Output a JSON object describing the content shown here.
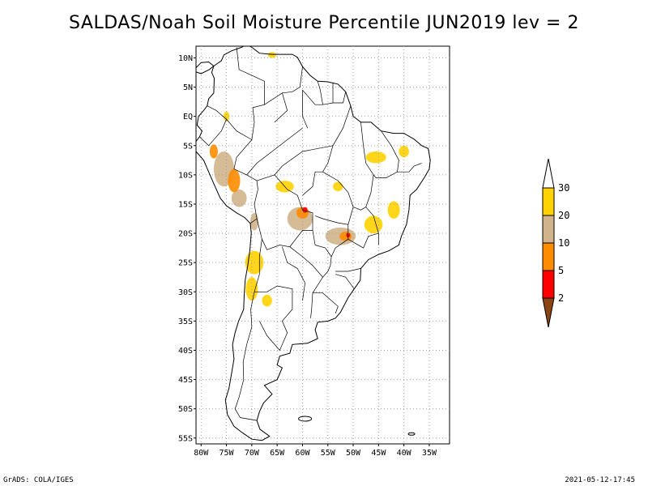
{
  "title": "SALDAS/Noah Soil Moisture Percentile JUN2019 lev = 2",
  "map": {
    "lat_range": [
      -56,
      12
    ],
    "lon_range": [
      -81,
      -31
    ],
    "lat_ticks": [
      {
        "value": 10,
        "label": "10N"
      },
      {
        "value": 5,
        "label": "5N"
      },
      {
        "value": 0,
        "label": "EQ"
      },
      {
        "value": -5,
        "label": "5S"
      },
      {
        "value": -10,
        "label": "10S"
      },
      {
        "value": -15,
        "label": "15S"
      },
      {
        "value": -20,
        "label": "20S"
      },
      {
        "value": -25,
        "label": "25S"
      },
      {
        "value": -30,
        "label": "30S"
      },
      {
        "value": -35,
        "label": "35S"
      },
      {
        "value": -40,
        "label": "40S"
      },
      {
        "value": -45,
        "label": "45S"
      },
      {
        "value": -50,
        "label": "50S"
      },
      {
        "value": -55,
        "label": "55S"
      }
    ],
    "lon_ticks": [
      {
        "value": -80,
        "label": "80W"
      },
      {
        "value": -75,
        "label": "75W"
      },
      {
        "value": -70,
        "label": "70W"
      },
      {
        "value": -65,
        "label": "65W"
      },
      {
        "value": -60,
        "label": "60W"
      },
      {
        "value": -55,
        "label": "55W"
      },
      {
        "value": -50,
        "label": "50W"
      },
      {
        "value": -45,
        "label": "45W"
      },
      {
        "value": -40,
        "label": "40W"
      },
      {
        "value": -35,
        "label": "35W"
      }
    ],
    "grid": true,
    "dry_regions": [
      {
        "lon": -75.5,
        "lat": -9,
        "rlon": 2.0,
        "rlat": 3.0,
        "level": "20"
      },
      {
        "lon": -73.5,
        "lat": -11,
        "rlon": 1.2,
        "rlat": 2.0,
        "level": "10"
      },
      {
        "lon": -77.5,
        "lat": -6,
        "rlon": 0.8,
        "rlat": 1.2,
        "level": "10"
      },
      {
        "lon": -72.5,
        "lat": -14,
        "rlon": 1.5,
        "rlat": 1.5,
        "level": "20"
      },
      {
        "lon": -69.5,
        "lat": -18,
        "rlon": 0.8,
        "rlat": 1.5,
        "level": "20"
      },
      {
        "lon": -69.5,
        "lat": -25,
        "rlon": 1.8,
        "rlat": 2.0,
        "level": "30"
      },
      {
        "lon": -70.0,
        "lat": -29.5,
        "rlon": 1.2,
        "rlat": 2.0,
        "level": "30"
      },
      {
        "lon": -67.0,
        "lat": -31.5,
        "rlon": 1.0,
        "rlat": 1.0,
        "level": "30"
      },
      {
        "lon": -63.5,
        "lat": -12,
        "rlon": 1.8,
        "rlat": 1.0,
        "level": "30"
      },
      {
        "lon": -60.5,
        "lat": -17.5,
        "rlon": 2.5,
        "rlat": 2.0,
        "level": "20"
      },
      {
        "lon": -60.0,
        "lat": -16.5,
        "rlon": 1.2,
        "rlat": 1.0,
        "level": "10"
      },
      {
        "lon": -59.5,
        "lat": -16.0,
        "rlon": 0.5,
        "rlat": 0.5,
        "level": "5"
      },
      {
        "lon": -52.5,
        "lat": -20.5,
        "rlon": 3.0,
        "rlat": 1.5,
        "level": "20"
      },
      {
        "lon": -51.5,
        "lat": -20.5,
        "rlon": 1.2,
        "rlat": 0.8,
        "level": "10"
      },
      {
        "lon": -51.0,
        "lat": -20.3,
        "rlon": 0.4,
        "rlat": 0.4,
        "level": "5"
      },
      {
        "lon": -46.0,
        "lat": -18.5,
        "rlon": 1.8,
        "rlat": 1.5,
        "level": "30"
      },
      {
        "lon": -45.5,
        "lat": -7,
        "rlon": 2.0,
        "rlat": 1.0,
        "level": "30"
      },
      {
        "lon": -40.0,
        "lat": -6,
        "rlon": 1.0,
        "rlat": 1.0,
        "level": "30"
      },
      {
        "lon": -42.0,
        "lat": -16.0,
        "rlon": 1.2,
        "rlat": 1.5,
        "level": "30"
      },
      {
        "lon": -66.0,
        "lat": 10.5,
        "rlon": 0.8,
        "rlat": 0.5,
        "level": "30"
      },
      {
        "lon": -75.0,
        "lat": 0,
        "rlon": 0.6,
        "rlat": 0.8,
        "level": "30"
      },
      {
        "lon": -53.0,
        "lat": -12,
        "rlon": 1.0,
        "rlat": 0.8,
        "level": "30"
      }
    ]
  },
  "legend": {
    "levels": [
      {
        "label": "30",
        "color": "#ffd200"
      },
      {
        "label": "20",
        "color": "#d2b48c"
      },
      {
        "label": "10",
        "color": "#ff8c00"
      },
      {
        "label": "5",
        "color": "#ff0000"
      },
      {
        "label": "2",
        "color": "#8b4513"
      }
    ],
    "top_color": "#ffffff",
    "colors": {
      "30": "#ffd200",
      "20": "#d2b48c",
      "10": "#ff8c00",
      "5": "#ff0000",
      "2": "#8b4513"
    }
  },
  "footer": {
    "left": "GrADS: COLA/IGES",
    "right": "2021-05-12-17:45"
  }
}
